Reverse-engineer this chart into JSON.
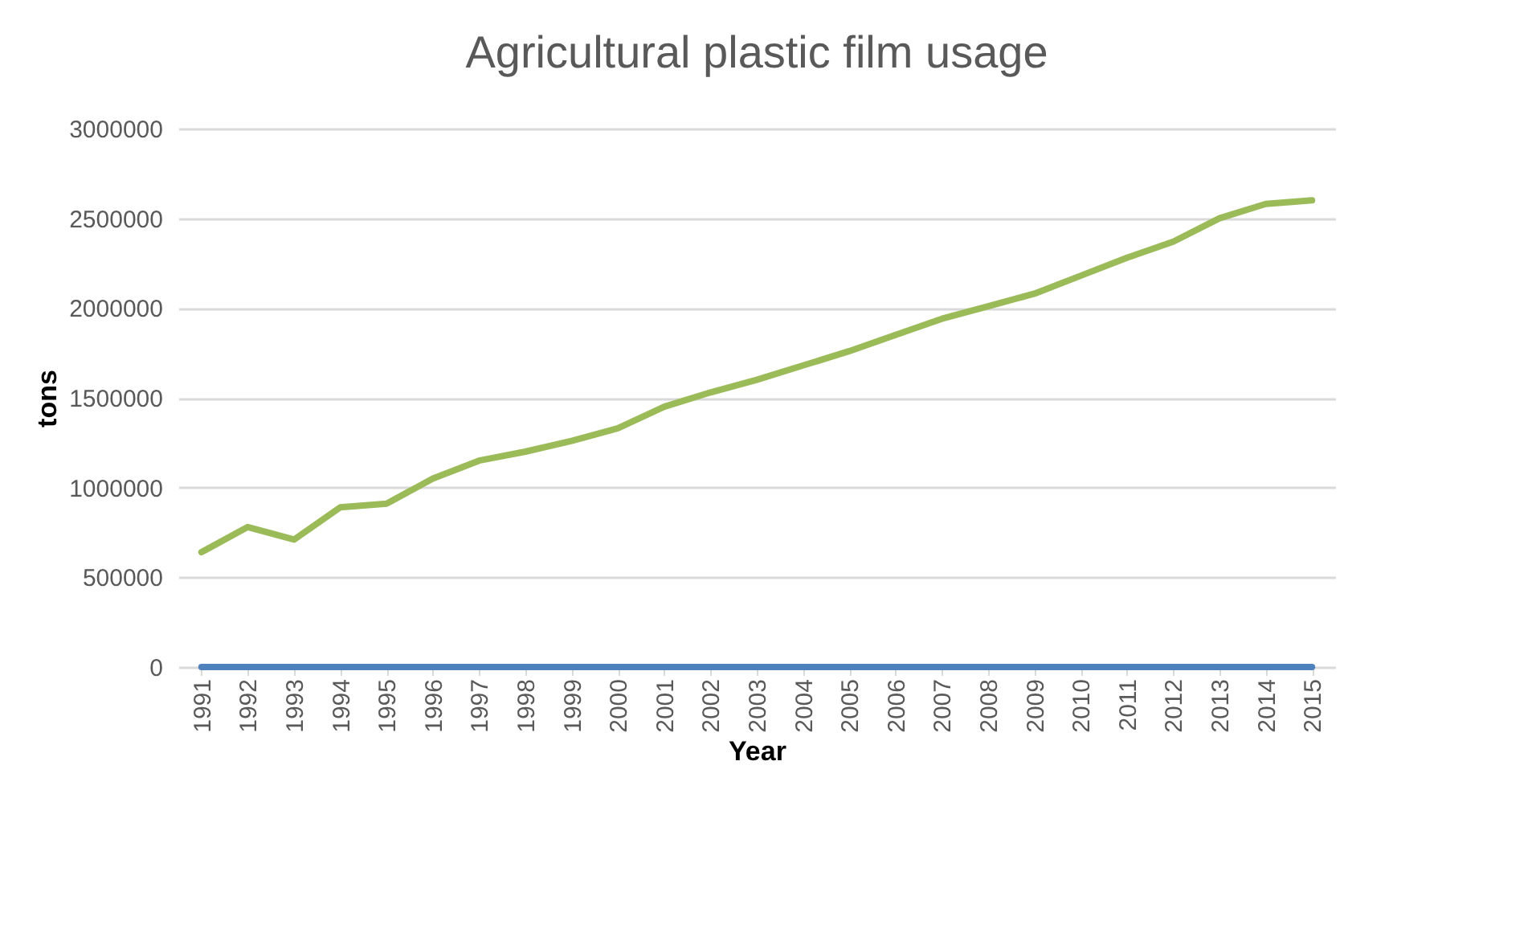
{
  "chart_data": {
    "type": "line",
    "title": "Agricultural plastic film usage",
    "xlabel": "Year",
    "ylabel": "tons",
    "categories": [
      "1991",
      "1992",
      "1993",
      "1994",
      "1995",
      "1996",
      "1997",
      "1998",
      "1999",
      "2000",
      "2001",
      "2002",
      "2003",
      "2004",
      "2005",
      "2006",
      "2007",
      "2008",
      "2009",
      "2010",
      "2011",
      "2012",
      "2013",
      "2014",
      "2015"
    ],
    "series": [
      {
        "color": "#4f81bd",
        "values": [
          0,
          0,
          0,
          0,
          0,
          0,
          0,
          0,
          0,
          0,
          0,
          0,
          0,
          0,
          0,
          0,
          0,
          0,
          0,
          0,
          0,
          0,
          0,
          0,
          0
        ]
      },
      {
        "color": "#9bbb59",
        "values": [
          640000,
          780000,
          710000,
          890000,
          910000,
          1050000,
          1150000,
          1200000,
          1260000,
          1330000,
          1450000,
          1530000,
          1600000,
          1680000,
          1760000,
          1850000,
          1940000,
          2010000,
          2080000,
          2180000,
          2280000,
          2370000,
          2500000,
          2580000,
          2600000
        ]
      }
    ],
    "ylim": [
      0,
      3000000
    ],
    "yticks": [
      0,
      500000,
      1000000,
      1500000,
      2000000,
      2500000,
      3000000
    ],
    "grid": "y",
    "marker": "none",
    "line_style": "solid"
  }
}
